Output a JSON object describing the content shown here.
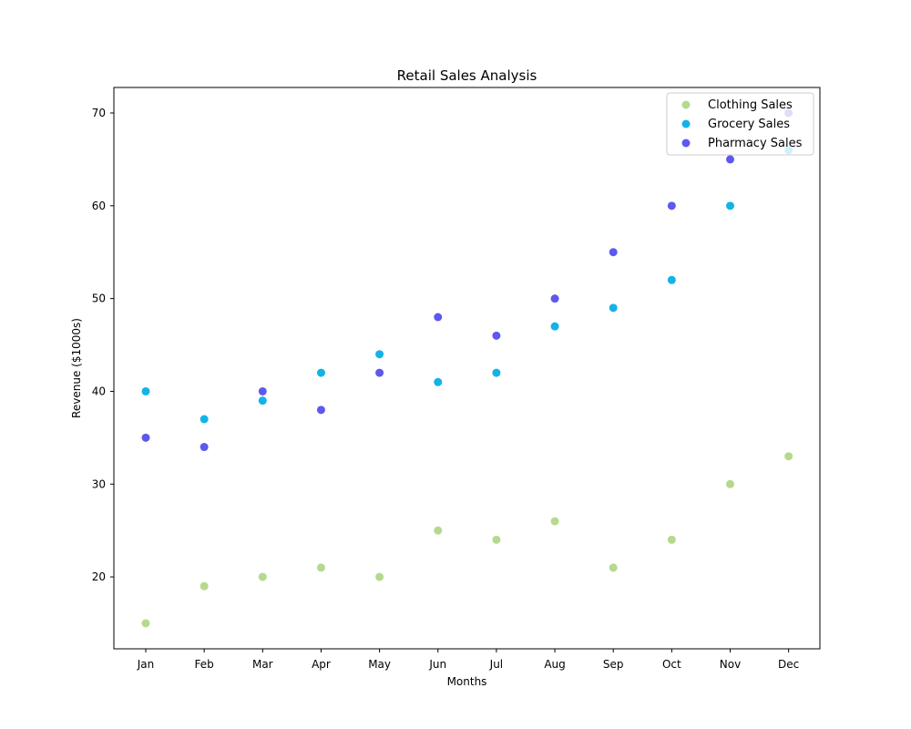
{
  "chart_data": {
    "type": "scatter",
    "title": "Retail Sales Analysis",
    "xlabel": "Months",
    "ylabel": "Revenue ($1000s)",
    "categories": [
      "Jan",
      "Feb",
      "Mar",
      "Apr",
      "May",
      "Jun",
      "Jul",
      "Aug",
      "Sep",
      "Oct",
      "Nov",
      "Dec"
    ],
    "ylim": [
      12.25,
      72.75
    ],
    "yticks": [
      20,
      30,
      40,
      50,
      60,
      70
    ],
    "grid": false,
    "legend_position": "top-right",
    "series": [
      {
        "name": "Clothing Sales",
        "color": "#b5d98e",
        "values": [
          15,
          19,
          20,
          21,
          20,
          25,
          24,
          26,
          21,
          24,
          30,
          33
        ]
      },
      {
        "name": "Grocery Sales",
        "color": "#13b3e8",
        "values": [
          40,
          37,
          39,
          42,
          44,
          41,
          42,
          47,
          49,
          52,
          60,
          66
        ]
      },
      {
        "name": "Pharmacy Sales",
        "color": "#5e58f0",
        "values": [
          35,
          34,
          40,
          38,
          42,
          48,
          46,
          50,
          55,
          60,
          65,
          70
        ]
      }
    ]
  }
}
